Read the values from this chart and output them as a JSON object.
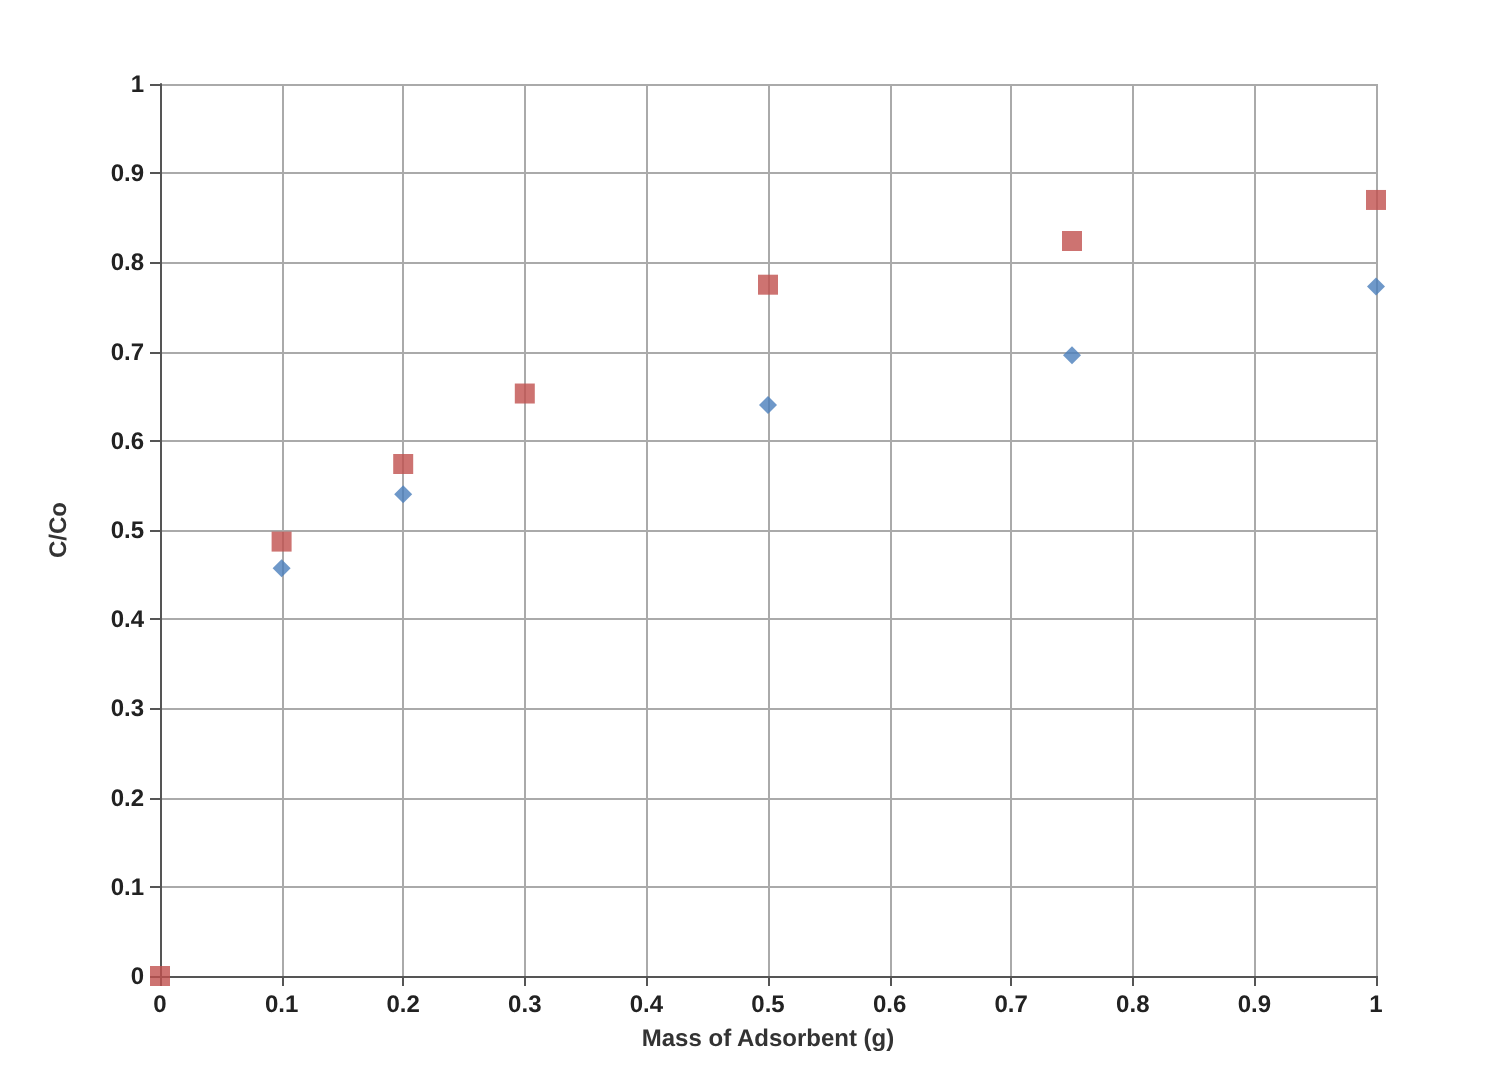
{
  "chart_data": {
    "type": "scatter",
    "xlabel": "Mass of Adsorbent (g)",
    "ylabel": "C/Co",
    "xlim": [
      0,
      1
    ],
    "xticks": [
      0,
      0.1,
      0.2,
      0.3,
      0.4,
      0.5,
      0.6,
      0.7,
      0.8,
      0.9,
      1
    ],
    "ylim": [
      0,
      1
    ],
    "yticks": [
      0,
      0.1,
      0.2,
      0.3,
      0.4,
      0.5,
      0.6,
      0.7,
      0.8,
      0.9,
      1
    ],
    "grid": true,
    "series": [
      {
        "color": "#4a7ebb",
        "marker": "diamond",
        "x": [
          0.1,
          0.2,
          0.5,
          0.75,
          1
        ],
        "values": [
          0.457,
          0.54,
          0.64,
          0.696,
          0.773
        ]
      },
      {
        "color": "#c0504d",
        "marker": "square",
        "x": [
          0,
          0.1,
          0.2,
          0.3,
          0.5,
          0.75,
          1
        ],
        "values": [
          0,
          0.487,
          0.574,
          0.653,
          0.775,
          0.824,
          0.87
        ]
      }
    ]
  }
}
